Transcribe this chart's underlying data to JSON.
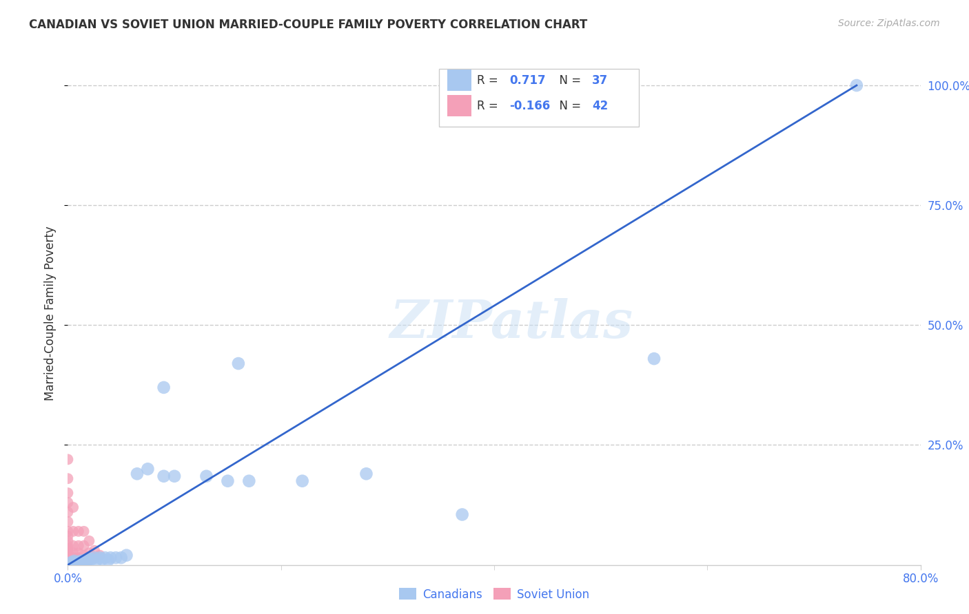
{
  "title": "CANADIAN VS SOVIET UNION MARRIED-COUPLE FAMILY POVERTY CORRELATION CHART",
  "source": "Source: ZipAtlas.com",
  "ylabel": "Married-Couple Family Poverty",
  "xmin": 0.0,
  "xmax": 0.8,
  "ymin": 0.0,
  "ymax": 1.05,
  "ytick_labels": [
    "100.0%",
    "75.0%",
    "50.0%",
    "25.0%"
  ],
  "ytick_values": [
    1.0,
    0.75,
    0.5,
    0.25
  ],
  "watermark": "ZIPatlas",
  "legend_r_canadian": "0.717",
  "legend_n_canadian": "37",
  "legend_r_soviet": "-0.166",
  "legend_n_soviet": "42",
  "canadian_color": "#a8c8f0",
  "soviet_color": "#f4a0b8",
  "trendline_color": "#3366cc",
  "blue_text": "#4477ee",
  "dark_text": "#333333",
  "gray_text": "#aaaaaa",
  "grid_color": "#cccccc",
  "canadian_points_x": [
    0.003,
    0.005,
    0.006,
    0.008,
    0.01,
    0.012,
    0.013,
    0.015,
    0.016,
    0.017,
    0.018,
    0.02,
    0.022,
    0.025,
    0.027,
    0.03,
    0.032,
    0.035,
    0.038,
    0.04,
    0.045,
    0.05,
    0.055,
    0.065,
    0.075,
    0.09,
    0.1,
    0.13,
    0.15,
    0.17,
    0.22,
    0.28,
    0.37,
    0.55,
    0.74,
    0.09,
    0.16
  ],
  "canadian_points_y": [
    0.005,
    0.005,
    0.008,
    0.005,
    0.005,
    0.008,
    0.005,
    0.008,
    0.01,
    0.005,
    0.01,
    0.012,
    0.012,
    0.015,
    0.01,
    0.015,
    0.012,
    0.015,
    0.01,
    0.015,
    0.015,
    0.015,
    0.02,
    0.19,
    0.2,
    0.185,
    0.185,
    0.185,
    0.175,
    0.175,
    0.175,
    0.19,
    0.105,
    0.43,
    1.0,
    0.37,
    0.42
  ],
  "soviet_points_x": [
    0.0,
    0.0,
    0.0,
    0.0,
    0.0,
    0.0,
    0.0,
    0.0,
    0.0,
    0.0,
    0.0,
    0.0,
    0.0,
    0.0,
    0.0,
    0.0,
    0.0,
    0.0,
    0.0,
    0.0,
    0.005,
    0.005,
    0.005,
    0.005,
    0.005,
    0.005,
    0.005,
    0.01,
    0.01,
    0.01,
    0.01,
    0.01,
    0.015,
    0.015,
    0.015,
    0.015,
    0.02,
    0.02,
    0.02,
    0.025,
    0.025,
    0.03
  ],
  "soviet_points_y": [
    0.005,
    0.008,
    0.01,
    0.012,
    0.015,
    0.018,
    0.02,
    0.025,
    0.03,
    0.035,
    0.04,
    0.05,
    0.06,
    0.07,
    0.09,
    0.11,
    0.13,
    0.15,
    0.18,
    0.22,
    0.005,
    0.01,
    0.015,
    0.025,
    0.04,
    0.07,
    0.12,
    0.008,
    0.015,
    0.025,
    0.04,
    0.07,
    0.01,
    0.02,
    0.04,
    0.07,
    0.01,
    0.025,
    0.05,
    0.015,
    0.03,
    0.02
  ],
  "trendline_x": [
    0.0,
    0.74
  ],
  "trendline_y": [
    0.0,
    1.0
  ]
}
